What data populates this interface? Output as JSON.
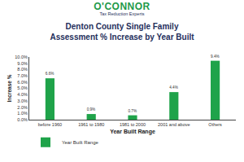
{
  "header": {
    "brand": "O'CONNOR",
    "tagline": "Tax Reduction Experts"
  },
  "chart_data": {
    "type": "bar",
    "title": [
      "Denton County Single Family",
      "Assessment % Increase by Year Built"
    ],
    "x_label": "Year Built Range",
    "y_label": "Increase %",
    "categories": [
      "before 1960",
      "1961 to 1980",
      "1981 to 2000",
      "2001 and above",
      "Others"
    ],
    "series": [
      {
        "name": "Year Built Range",
        "color": "#1fa34a",
        "values": [
          6.6,
          0.9,
          0.7,
          4.4,
          9.4
        ],
        "value_labels": [
          "6.6%",
          "0.9%",
          "0.7%",
          "4.4%",
          "9.4%"
        ]
      }
    ],
    "ylim": [
      0,
      10
    ],
    "yticks": [
      {
        "value": 0,
        "label": "0.0%"
      },
      {
        "value": 1,
        "label": "1.0%"
      },
      {
        "value": 2,
        "label": "2.0%"
      },
      {
        "value": 3,
        "label": "3.0%"
      },
      {
        "value": 4,
        "label": "4.0%"
      },
      {
        "value": 5,
        "label": "5.0%"
      },
      {
        "value": 6,
        "label": "6.0%"
      },
      {
        "value": 7,
        "label": "7.0%"
      },
      {
        "value": 8,
        "label": "8.0%"
      },
      {
        "value": 9,
        "label": "9.0%"
      },
      {
        "value": 10,
        "label": "10.0%"
      }
    ],
    "grid": false,
    "data_labels": true,
    "legend": "bottom-left"
  }
}
